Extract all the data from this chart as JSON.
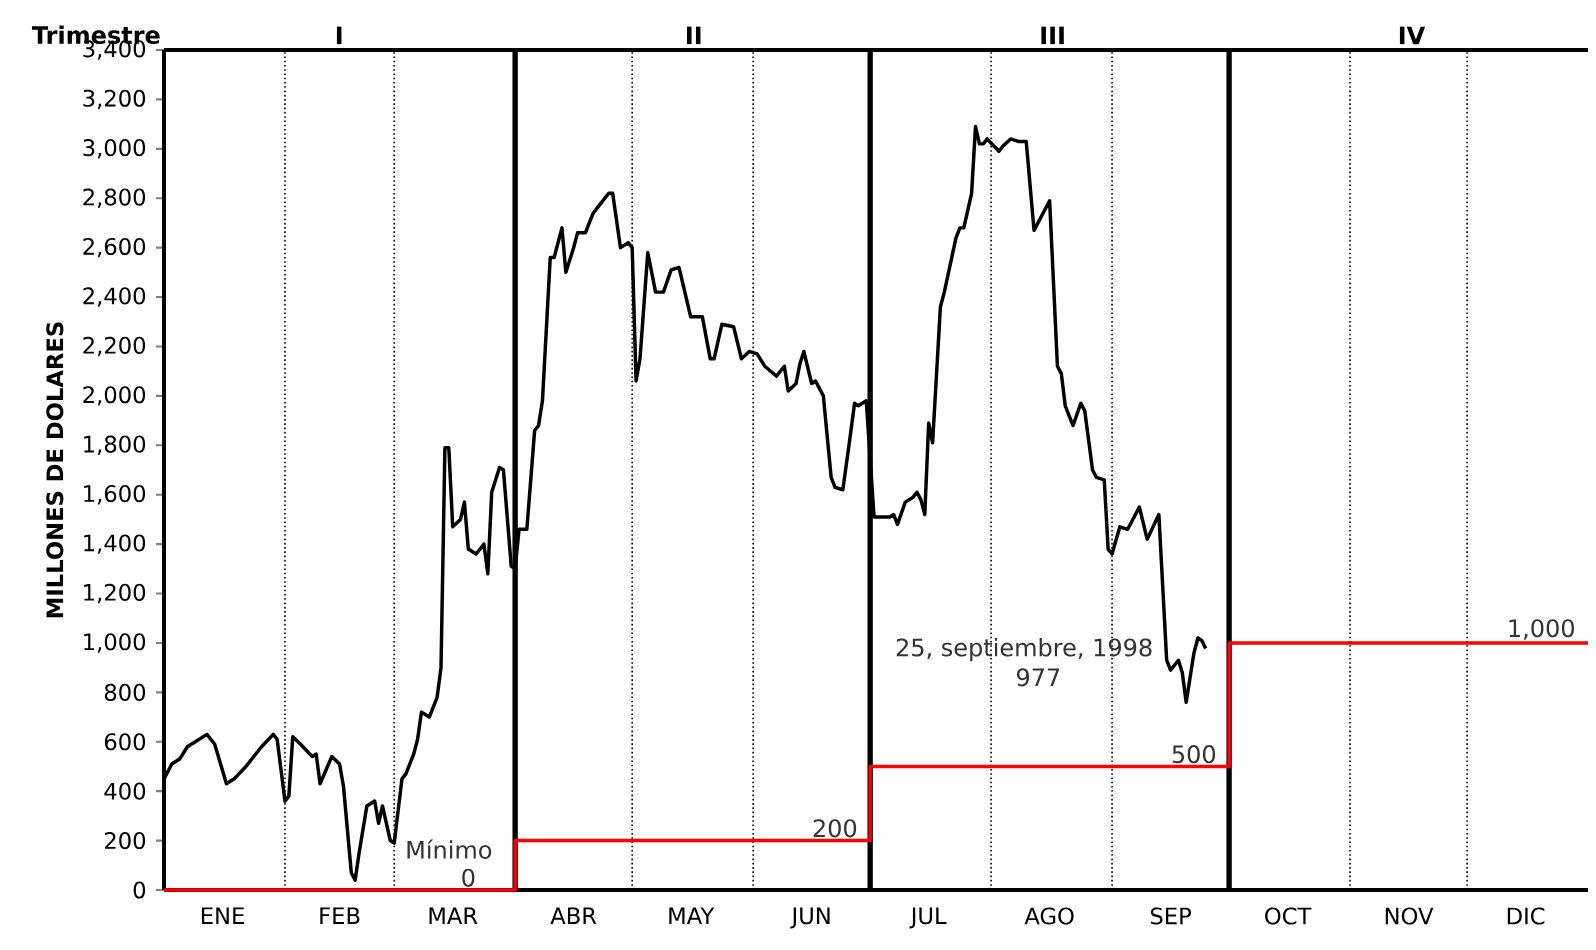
{
  "chart_data": {
    "type": "line",
    "ylabel": "MILLONES DE DOLARES",
    "xlim": [
      "1998-01-01",
      "1999-01-01"
    ],
    "xticks": [
      {
        "value": "1998-01-16",
        "label": "ENE"
      },
      {
        "value": "1998-02-15",
        "label": "FEB"
      },
      {
        "value": "1998-03-16",
        "label": "MAR"
      },
      {
        "value": "1998-04-16",
        "label": "ABR"
      },
      {
        "value": "1998-05-16",
        "label": "MAY"
      },
      {
        "value": "1998-06-16",
        "label": "JUN"
      },
      {
        "value": "1998-07-16",
        "label": "JUL"
      },
      {
        "value": "1998-08-16",
        "label": "AGO"
      },
      {
        "value": "1998-09-16",
        "label": "SEP"
      },
      {
        "value": "1998-10-16",
        "label": "OCT"
      },
      {
        "value": "1998-11-16",
        "label": "NOV"
      },
      {
        "value": "1998-12-16",
        "label": "DIC"
      }
    ],
    "ylim": [
      0,
      3400
    ],
    "yticks": [
      0,
      200,
      400,
      600,
      800,
      {
        "value": 1000,
        "label": "1,000"
      },
      {
        "value": 1200,
        "label": "1,200"
      },
      {
        "value": 1400,
        "label": "1,400"
      },
      {
        "value": 1600,
        "label": "1,600"
      },
      {
        "value": 1800,
        "label": "1,800"
      },
      {
        "value": 2000,
        "label": "2,000"
      },
      {
        "value": 2200,
        "label": "2,200"
      },
      {
        "value": 2400,
        "label": "2,400"
      },
      {
        "value": 2600,
        "label": "2,600"
      },
      {
        "value": 2800,
        "label": "2,800"
      },
      {
        "value": 3000,
        "label": "3,000"
      },
      {
        "value": 3200,
        "label": "3,200"
      },
      {
        "value": 3400,
        "label": "3,400"
      }
    ],
    "line_style": "solid",
    "series": [
      {
        "color": "#000000",
        "x": [
          "1998-01-01",
          "1998-01-03",
          "1998-01-05",
          "1998-01-07",
          "1998-01-12",
          "1998-01-14",
          "1998-01-17",
          "1998-01-19",
          "1998-01-22",
          "1998-01-26",
          "1998-01-29",
          "1998-01-30",
          "1998-02-01",
          "1998-02-02",
          "1998-02-03",
          "1998-02-05",
          "1998-02-08",
          "1998-02-09",
          "1998-02-10",
          "1998-02-13",
          "1998-02-15",
          "1998-02-16",
          "1998-02-18",
          "1998-02-19",
          "1998-02-20",
          "1998-02-22",
          "1998-02-24",
          "1998-02-25",
          "1998-02-26",
          "1998-02-28",
          "1998-03-01",
          "1998-03-03",
          "1998-03-04",
          "1998-03-06",
          "1998-03-07",
          "1998-03-08",
          "1998-03-10",
          "1998-03-12",
          "1998-03-13",
          "1998-03-14",
          "1998-03-15",
          "1998-03-16",
          "1998-03-18",
          "1998-03-19",
          "1998-03-20",
          "1998-03-22",
          "1998-03-24",
          "1998-03-25",
          "1998-03-26",
          "1998-03-28",
          "1998-03-29",
          "1998-03-31",
          "1998-04-01",
          "1998-04-02",
          "1998-04-04",
          "1998-04-06",
          "1998-04-07",
          "1998-04-08",
          "1998-04-10",
          "1998-04-11",
          "1998-04-13",
          "1998-04-14",
          "1998-04-16",
          "1998-04-17",
          "1998-04-19",
          "1998-04-21",
          "1998-04-23",
          "1998-04-25",
          "1998-04-26",
          "1998-04-28",
          "1998-04-30",
          "1998-05-01",
          "1998-05-02",
          "1998-05-03",
          "1998-05-05",
          "1998-05-07",
          "1998-05-09",
          "1998-05-11",
          "1998-05-13",
          "1998-05-16",
          "1998-05-19",
          "1998-05-21",
          "1998-05-22",
          "1998-05-24",
          "1998-05-27",
          "1998-05-29",
          "1998-05-31",
          "1998-06-02",
          "1998-06-04",
          "1998-06-07",
          "1998-06-09",
          "1998-06-10",
          "1998-06-12",
          "1998-06-13",
          "1998-06-14",
          "1998-06-16",
          "1998-06-17",
          "1998-06-19",
          "1998-06-21",
          "1998-06-22",
          "1998-06-24",
          "1998-06-26",
          "1998-06-27",
          "1998-06-28",
          "1998-06-29",
          "1998-06-30",
          "1998-07-02",
          "1998-07-06",
          "1998-07-07",
          "1998-07-08",
          "1998-07-10",
          "1998-07-12",
          "1998-07-13",
          "1998-07-14",
          "1998-07-15",
          "1998-07-16",
          "1998-07-17",
          "1998-07-19",
          "1998-07-20",
          "1998-07-23",
          "1998-07-24",
          "1998-07-25",
          "1998-07-27",
          "1998-07-28",
          "1998-07-29",
          "1998-07-30",
          "1998-07-31",
          "1998-08-03",
          "1998-08-04",
          "1998-08-06",
          "1998-08-08",
          "1998-08-10",
          "1998-08-12",
          "1998-08-14",
          "1998-08-16",
          "1998-08-18",
          "1998-08-19",
          "1998-08-20",
          "1998-08-22",
          "1998-08-24",
          "1998-08-25",
          "1998-08-27",
          "1998-08-28",
          "1998-08-30",
          "1998-08-31",
          "1998-09-01",
          "1998-09-03",
          "1998-09-05",
          "1998-09-08",
          "1998-09-10",
          "1998-09-13",
          "1998-09-15",
          "1998-09-16",
          "1998-09-18",
          "1998-09-19",
          "1998-09-20",
          "1998-09-22",
          "1998-09-23",
          "1998-09-24",
          "1998-09-25"
        ],
        "values": [
          450,
          510,
          530,
          580,
          630,
          590,
          430,
          450,
          500,
          580,
          630,
          610,
          360,
          380,
          620,
          590,
          540,
          550,
          430,
          540,
          510,
          420,
          70,
          40,
          150,
          340,
          360,
          270,
          340,
          200,
          190,
          450,
          470,
          550,
          610,
          720,
          700,
          780,
          900,
          1790,
          1790,
          1470,
          1500,
          1570,
          1380,
          1360,
          1400,
          1280,
          1610,
          1710,
          1700,
          1310,
          1300,
          1460,
          1460,
          1860,
          1880,
          1980,
          2560,
          2560,
          2680,
          2500,
          2600,
          2660,
          2660,
          2740,
          2780,
          2820,
          2820,
          2600,
          2620,
          2600,
          2060,
          2150,
          2580,
          2420,
          2420,
          2510,
          2520,
          2320,
          2320,
          2150,
          2150,
          2290,
          2280,
          2150,
          2180,
          2170,
          2120,
          2080,
          2120,
          2020,
          2050,
          2130,
          2180,
          2050,
          2060,
          2000,
          1670,
          1630,
          1620,
          1850,
          1970,
          1960,
          1970,
          1980,
          1510,
          1510,
          1520,
          1480,
          1570,
          1590,
          1610,
          1580,
          1520,
          1890,
          1810,
          2360,
          2420,
          2640,
          2680,
          2680,
          2820,
          3090,
          3020,
          3020,
          3040,
          2990,
          3010,
          3040,
          3030,
          3030,
          2670,
          2730,
          2790,
          2120,
          2090,
          1960,
          1880,
          1970,
          1940,
          1700,
          1670,
          1660,
          1380,
          1360,
          1470,
          1460,
          1550,
          1420,
          1520,
          930,
          890,
          930,
          880,
          760,
          960,
          1020,
          1010,
          977
        ]
      },
      {
        "type": "step",
        "color": "#ff0000",
        "x": [
          "1998-01-01",
          "1998-04-01",
          "1998-07-01",
          "1998-10-01",
          "1999-01-01"
        ],
        "values": [
          0,
          200,
          500,
          1000,
          1000
        ]
      }
    ],
    "ref_lines": [
      {
        "axis": "x",
        "value": "1998-02-01",
        "line_style": "dotted",
        "color": "#000000"
      },
      {
        "axis": "x",
        "value": "1998-03-01",
        "line_style": "dotted",
        "color": "#000000"
      },
      {
        "axis": "x",
        "value": "1998-04-01",
        "line_style": "solid",
        "color": "#000000"
      },
      {
        "axis": "x",
        "value": "1998-05-01",
        "line_style": "dotted",
        "color": "#000000"
      },
      {
        "axis": "x",
        "value": "1998-06-01",
        "line_style": "dotted",
        "color": "#000000"
      },
      {
        "axis": "x",
        "value": "1998-07-01",
        "line_style": "solid",
        "color": "#000000"
      },
      {
        "axis": "x",
        "value": "1998-08-01",
        "line_style": "dotted",
        "color": "#000000"
      },
      {
        "axis": "x",
        "value": "1998-09-01",
        "line_style": "dotted",
        "color": "#000000"
      },
      {
        "axis": "x",
        "value": "1998-10-01",
        "line_style": "solid",
        "color": "#000000"
      },
      {
        "axis": "x",
        "value": "1998-11-01",
        "line_style": "dotted",
        "color": "#000000"
      },
      {
        "axis": "x",
        "value": "1998-12-01",
        "line_style": "dotted",
        "color": "#000000"
      }
    ],
    "annotations": [
      "Mínimo",
      {
        "text": "0",
        "x": "1998-03-20",
        "y": 0
      },
      {
        "text": "200",
        "x": "1998-06-30",
        "y": 200
      },
      {
        "text": "500",
        "x": "1998-09-30",
        "y": 500
      },
      {
        "text": "1,000",
        "x": "1998-12-31",
        "y": 1000
      },
      "25, septiembre, 1998",
      "977",
      "Trimestre",
      "I",
      "II",
      "III",
      "IV"
    ]
  }
}
